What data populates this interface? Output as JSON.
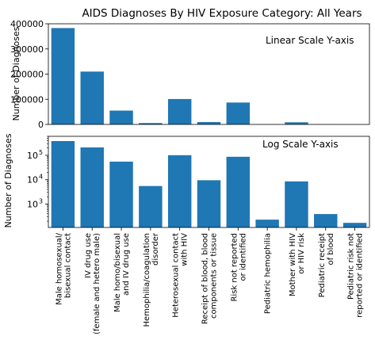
{
  "chart_data": [
    {
      "type": "bar",
      "title": "AIDS Diagnoses By HIV Exposure Category: All Years",
      "annotation": "Linear Scale Y-axis",
      "ylabel": "Number of Diagnoses",
      "xlabel": "",
      "ylim": [
        0,
        400000
      ],
      "yticks": [
        "0",
        "100000",
        "200000",
        "300000",
        "400000"
      ],
      "yscale": "linear",
      "grid": false,
      "color": "#1f77b4",
      "categories": [
        "Male homosexual/ bisexual contact",
        "IV drug use (female and hetero male)",
        "Male homo/bisexual and IV drug use",
        "Hemophilia/coagulation disorder",
        "Heterosexual contact with HIV",
        "Receipt of blood, blood components or tissue",
        "Risk not reported or identified",
        "Pediatric hemophilia",
        "Mother with HIV or HIV risk",
        "Pediatric receipt of blood",
        "Pediatric risk not reported or identified"
      ],
      "values": [
        383000,
        210000,
        55000,
        5500,
        101000,
        9500,
        87000,
        230,
        8500,
        390,
        170
      ]
    },
    {
      "type": "bar",
      "annotation": "Log Scale Y-axis",
      "ylabel": "Number of Diagnoses",
      "yscale": "log",
      "ylim": [
        110,
        600000
      ],
      "yticks": [
        {
          "base": "10",
          "exp": "3",
          "value": 1000
        },
        {
          "base": "10",
          "exp": "4",
          "value": 10000
        },
        {
          "base": "10",
          "exp": "5",
          "value": 100000
        }
      ],
      "grid": false,
      "color": "#1f77b4",
      "categories": [
        "Male homosexual/\nbisexual contact",
        "IV drug use\n(female and hetero male)",
        "Male homo/bisexual\nand IV drug use",
        "Hemophilia/coagulation\ndisorder",
        "Heterosexual contact\nwith HIV",
        "Receipt of blood, blood\ncomponents or tissue",
        "Risk not reported\nor identified",
        "Pediatric hemophilia",
        "Mother with HIV\nor HIV risk",
        "Pediatric receipt\nof blood",
        "Pediatric risk not\nreported or identified"
      ],
      "values": [
        383000,
        210000,
        55000,
        5500,
        101000,
        9500,
        87000,
        230,
        8500,
        390,
        170
      ]
    }
  ]
}
